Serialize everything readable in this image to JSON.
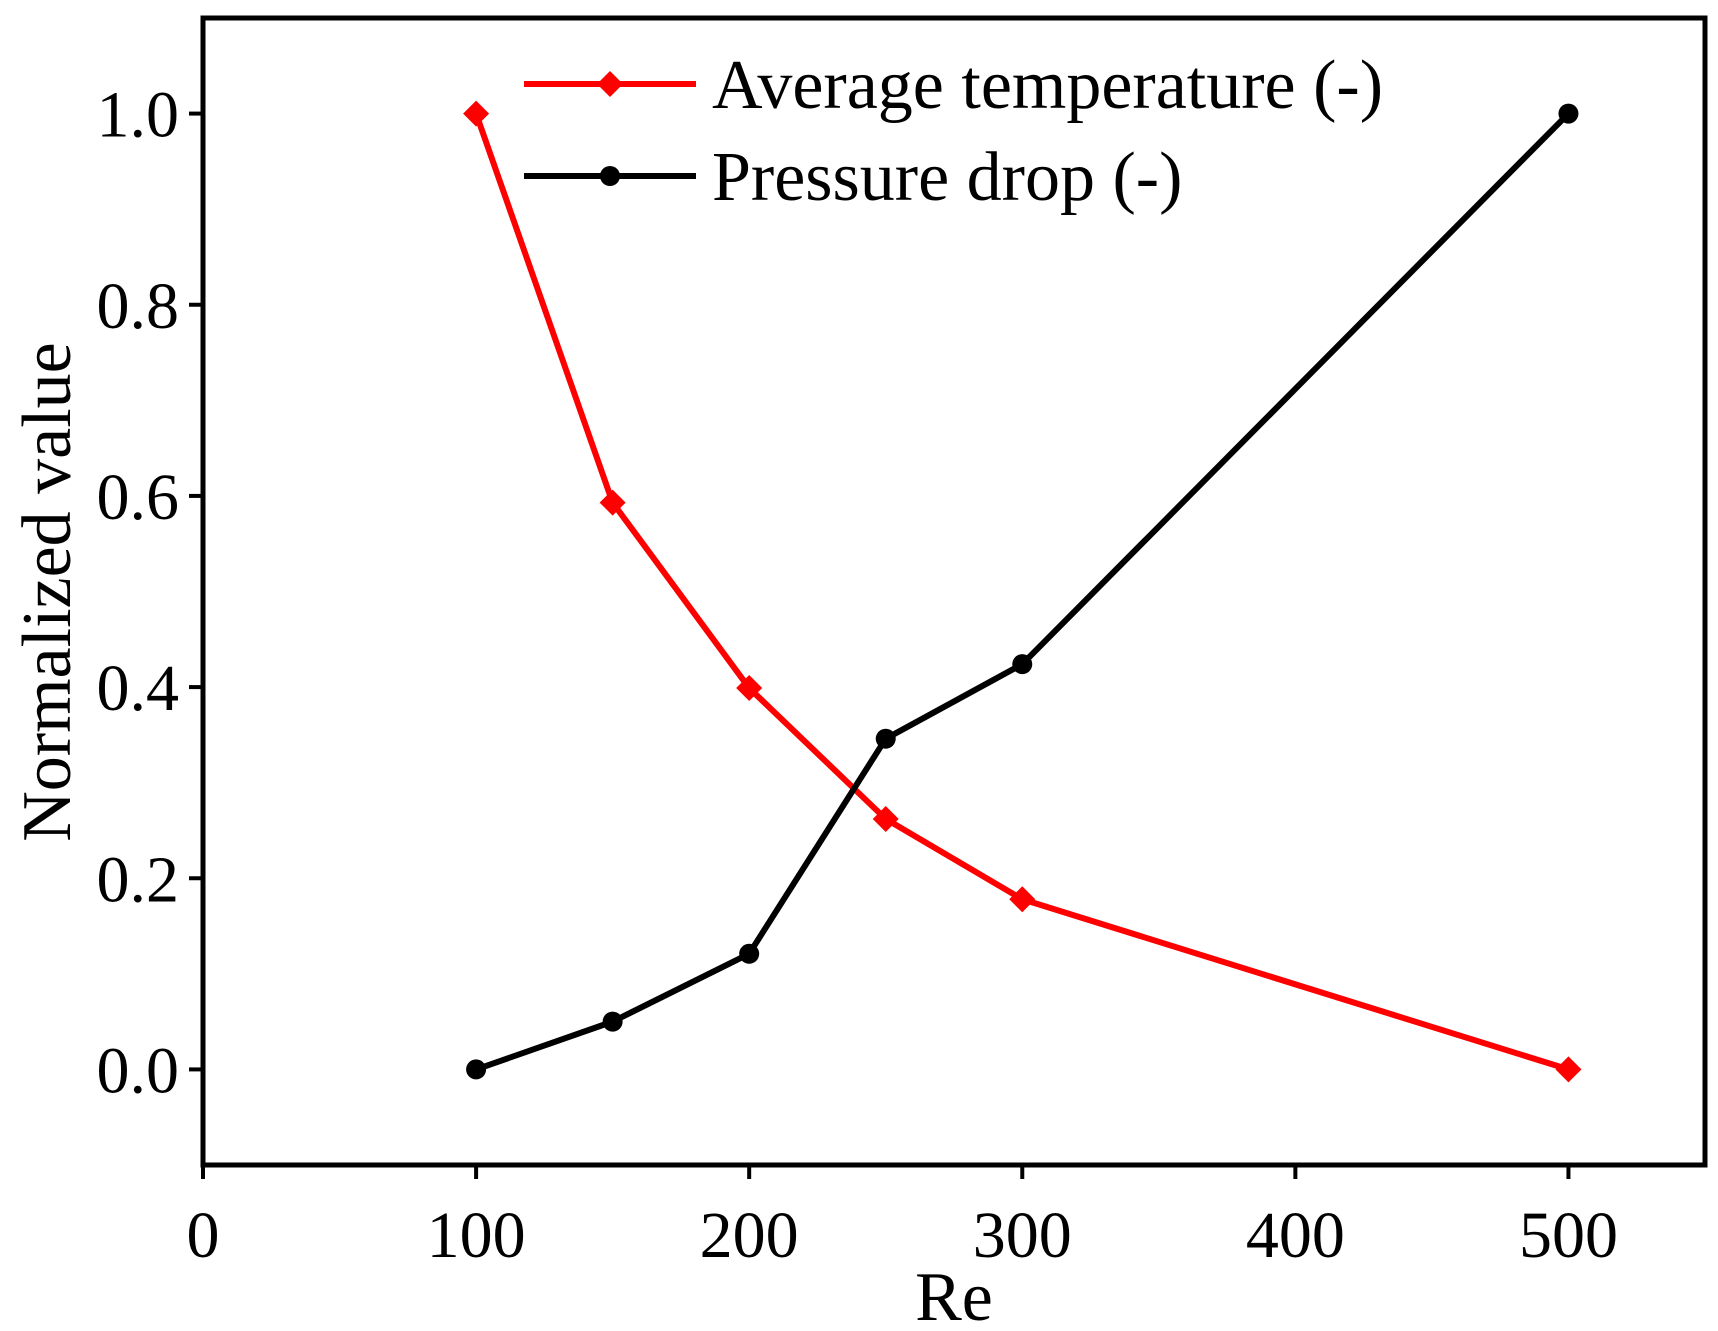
{
  "chart_data": {
    "type": "line",
    "title": "",
    "xlabel": "Re",
    "ylabel": "Normalized value",
    "xlim": [
      0,
      550
    ],
    "ylim": [
      -0.1,
      1.1
    ],
    "xticks": [
      0,
      100,
      200,
      300,
      400,
      500
    ],
    "xtick_labels": [
      "0",
      "100",
      "200",
      "300",
      "400",
      "500"
    ],
    "yticks": [
      0.0,
      0.2,
      0.4,
      0.6,
      0.8,
      1.0
    ],
    "ytick_labels": [
      "0.0",
      "0.2",
      "0.4",
      "0.6",
      "0.8",
      "1.0"
    ],
    "grid": false,
    "legend_position": "top",
    "series": [
      {
        "name": "Average temperature (-)",
        "color": "#ff0000",
        "marker": "diamond",
        "x": [
          100,
          150,
          200,
          250,
          300,
          500
        ],
        "y": [
          1.0,
          0.593,
          0.399,
          0.262,
          0.178,
          0.0
        ]
      },
      {
        "name": "Pressure drop (-)",
        "color": "#000000",
        "marker": "circle",
        "x": [
          100,
          150,
          200,
          250,
          300,
          500
        ],
        "y": [
          0.0,
          0.05,
          0.121,
          0.346,
          0.424,
          1.0
        ]
      }
    ]
  }
}
